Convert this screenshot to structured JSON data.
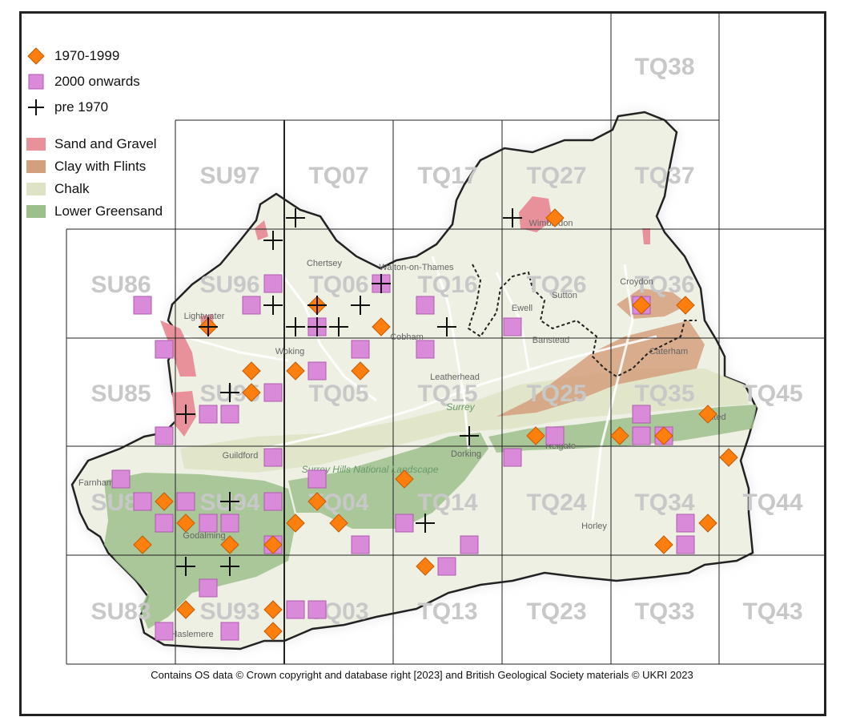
{
  "legend": {
    "points": [
      {
        "label": "1970-1999",
        "icon": "orange-diamond-icon"
      },
      {
        "label": "2000 onwards",
        "icon": "pink-square-icon"
      },
      {
        "label": "pre 1970",
        "icon": "black-cross-icon"
      }
    ],
    "areas": [
      {
        "label": "Sand and Gravel",
        "color": "#e8919b"
      },
      {
        "label": "Clay with Flints",
        "color": "#d4a07c"
      },
      {
        "label": "Chalk",
        "color": "#dfe3c6"
      },
      {
        "label": "Lower Greensand",
        "color": "#9cc08c"
      }
    ]
  },
  "colors": {
    "diamond": "#ff7f0e",
    "square": "#d98ad9",
    "cross": "#111111",
    "grid": "#222222",
    "label": "#c8c8c8"
  },
  "grid_labels": [
    "TQ38",
    "SU97",
    "TQ07",
    "TQ17",
    "TQ27",
    "TQ37",
    "SU86",
    "SU96",
    "TQ06",
    "TQ16",
    "TQ26",
    "TQ36",
    "SU85",
    "SU95",
    "TQ05",
    "TQ15",
    "TQ25",
    "TQ35",
    "TQ45",
    "SU84",
    "SU94",
    "TQ04",
    "TQ14",
    "TQ24",
    "TQ34",
    "TQ44",
    "SU83",
    "SU93",
    "TQ03",
    "TQ13",
    "TQ23",
    "TQ33",
    "TQ43"
  ],
  "place_labels": [
    "Wimbledon",
    "Chertsey",
    "Walton-on-Thames",
    "Lightwater",
    "Woking",
    "Cobham",
    "Ewell",
    "Sutton",
    "Croydon",
    "Leatherhead",
    "Surrey",
    "Dorking",
    "Guildford",
    "Surrey Hills National Landscape",
    "Godalming",
    "Horley",
    "Farnham",
    "Haslemere",
    "Banstead",
    "Caterham",
    "Oxted",
    "Reigate"
  ],
  "credit": "Contains OS data  © Crown copyright and database right [2023] and British Geological Society materials © UKRI 2023"
}
